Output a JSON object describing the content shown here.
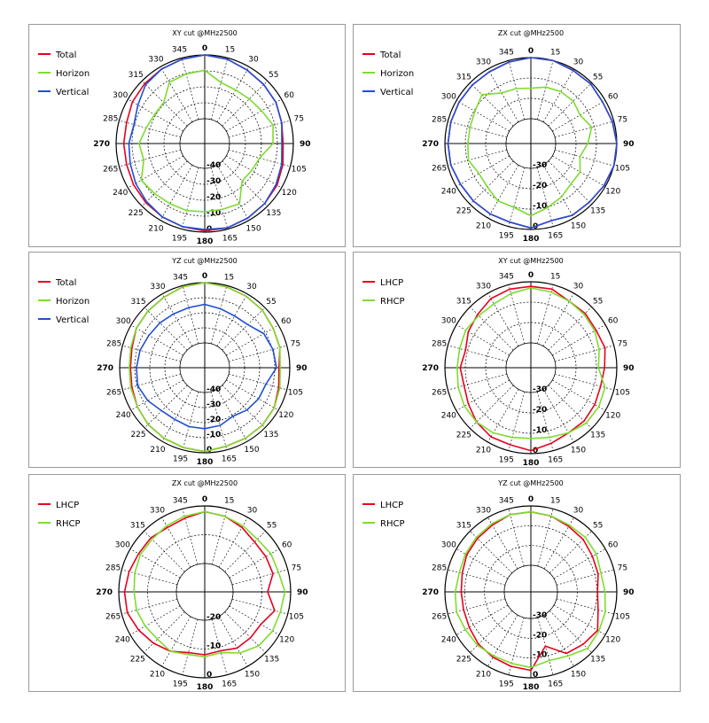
{
  "colors": {
    "red": "#e8001c",
    "green": "#7ddc2f",
    "blue": "#1f4fd6"
  },
  "chart_data": [
    {
      "type": "polar",
      "title": "XY cut @MHz2500",
      "theta_labels": [
        "0",
        "15",
        "30",
        "55",
        "60",
        "75",
        "90",
        "105",
        "120",
        "135",
        "150",
        "165",
        "180",
        "195",
        "210",
        "225",
        "240",
        "265",
        "270",
        "285",
        "300",
        "315",
        "330",
        "345"
      ],
      "radial_labels": [
        "-40",
        "-30",
        "-20",
        "-10",
        "0"
      ],
      "rlim": [
        -50,
        0
      ],
      "legend_position": "top-left",
      "series": [
        {
          "name": "Total",
          "color": "red",
          "values": [
            0,
            -1,
            -3,
            -4,
            -5,
            -7,
            -8,
            -6,
            -4,
            -3,
            -2,
            -1,
            -1,
            -2,
            -3,
            -4,
            -5,
            -6,
            -6,
            -6,
            -4,
            -3,
            -2,
            -1
          ]
        },
        {
          "name": "Horizon",
          "color": "green",
          "values": [
            -12,
            -20,
            -21,
            -20,
            -18,
            -14,
            -16,
            -25,
            -27,
            -28,
            -15,
            -16,
            -16,
            -15,
            -15,
            -14,
            -12,
            -20,
            -18,
            -22,
            -24,
            -24,
            -14,
            -13
          ]
        },
        {
          "name": "Vertical",
          "color": "blue",
          "values": [
            0,
            -1,
            -3,
            -4,
            -5,
            -7,
            -9,
            -7,
            -5,
            -3,
            -2,
            -1,
            -2,
            -2,
            -3,
            -5,
            -7,
            -9,
            -10,
            -12,
            -9,
            -4,
            -2,
            -1
          ]
        }
      ]
    },
    {
      "type": "polar",
      "title": "ZX cut @MHz2500",
      "theta_labels": [
        "0",
        "15",
        "30",
        "55",
        "60",
        "75",
        "90",
        "105",
        "120",
        "135",
        "150",
        "165",
        "180",
        "195",
        "210",
        "225",
        "240",
        "265",
        "270",
        "285",
        "300",
        "315",
        "330",
        "345"
      ],
      "radial_labels": [
        "-30",
        "-20",
        "-10",
        "0"
      ],
      "rlim": [
        -40,
        0
      ],
      "legend_position": "top-left",
      "series": [
        {
          "name": "Total",
          "color": "red",
          "values": [
            0,
            0,
            -1,
            -1,
            -2,
            -1,
            0,
            0,
            -1,
            -2,
            -2,
            -4,
            -1,
            -3,
            -3,
            -3,
            -3,
            -2,
            -2,
            -2,
            -2,
            -2,
            -2,
            -1
          ]
        },
        {
          "name": "Horizon",
          "color": "green",
          "values": [
            -20,
            -18,
            -17,
            -17,
            -19,
            -15,
            -19,
            -23,
            -19,
            -19,
            -16,
            -13,
            -9,
            -13,
            -13,
            -16,
            -17,
            -14,
            -15,
            -15,
            -14,
            -11,
            -18,
            -19
          ]
        },
        {
          "name": "Vertical",
          "color": "blue",
          "values": [
            0,
            0,
            -1,
            -1,
            -2,
            -1,
            0,
            0,
            -1,
            -2,
            -2,
            -4,
            -1,
            -3,
            -3,
            -3,
            -3,
            -2,
            -2,
            -2,
            -2,
            -2,
            -2,
            -1
          ]
        }
      ]
    },
    {
      "type": "polar",
      "title": "YZ cut @MHz2500",
      "theta_labels": [
        "0",
        "15",
        "30",
        "55",
        "60",
        "75",
        "90",
        "105",
        "120",
        "135",
        "150",
        "165",
        "180",
        "195",
        "210",
        "225",
        "240",
        "265",
        "270",
        "285",
        "300",
        "315",
        "330",
        "345"
      ],
      "radial_labels": [
        "-40",
        "-30",
        "-20",
        "-10",
        "0"
      ],
      "rlim": [
        -50,
        0
      ],
      "legend_position": "top-left",
      "series": [
        {
          "name": "Total",
          "color": "red",
          "values": [
            0,
            -1,
            -2,
            -3,
            -5,
            -6,
            -9,
            -7,
            -4,
            -3,
            -3,
            -3,
            -1,
            -2,
            -3,
            -4,
            -6,
            -8,
            -9,
            -8,
            -5,
            -4,
            -3,
            -1
          ]
        },
        {
          "name": "Horizon",
          "color": "green",
          "values": [
            0,
            -1,
            -2,
            -3,
            -5,
            -6,
            -8,
            -6,
            -4,
            -3,
            -3,
            -3,
            -1,
            -2,
            -3,
            -4,
            -6,
            -7,
            -8,
            -7,
            -5,
            -4,
            -3,
            -1
          ]
        },
        {
          "name": "Vertical",
          "color": "blue",
          "values": [
            -18,
            -20,
            -21,
            -20,
            -14,
            -12,
            -11,
            -18,
            -19,
            -21,
            -24,
            -21,
            -20,
            -20,
            -21,
            -20,
            -16,
            -13,
            -14,
            -15,
            -17,
            -18,
            -19,
            -19
          ]
        }
      ]
    },
    {
      "type": "polar",
      "title": "XY cut @MHz2500",
      "theta_labels": [
        "0",
        "15",
        "30",
        "55",
        "60",
        "75",
        "90",
        "105",
        "120",
        "135",
        "150",
        "165",
        "180",
        "195",
        "210",
        "225",
        "240",
        "265",
        "270",
        "285",
        "300",
        "315",
        "330",
        "345"
      ],
      "radial_labels": [
        "-30",
        "-20",
        "-10",
        "0"
      ],
      "rlim": [
        -40,
        0
      ],
      "legend_position": "top-left",
      "series": [
        {
          "name": "LHCP",
          "color": "red",
          "values": [
            -3,
            -3,
            -6,
            -6,
            -7,
            -6,
            -8,
            -9,
            -8,
            -7,
            -7,
            -5,
            -2,
            -4,
            -4,
            -6,
            -9,
            -11,
            -10,
            -12,
            -9,
            -7,
            -4,
            -3
          ]
        },
        {
          "name": "RHCP",
          "color": "green",
          "values": [
            -4,
            -5,
            -6,
            -7,
            -8,
            -10,
            -12,
            -6,
            -5,
            -5,
            -7,
            -9,
            -10,
            -9,
            -7,
            -6,
            -6,
            -7,
            -8,
            -8,
            -7,
            -8,
            -8,
            -6
          ]
        }
      ]
    },
    {
      "type": "polar",
      "title": "ZX cut @MHz2500",
      "theta_labels": [
        "0",
        "15",
        "30",
        "55",
        "60",
        "75",
        "90",
        "105",
        "120",
        "135",
        "150",
        "165",
        "180",
        "195",
        "210",
        "225",
        "240",
        "265",
        "270",
        "285",
        "300",
        "315",
        "330",
        "345"
      ],
      "radial_labels": [
        "-20",
        "-10",
        "0"
      ],
      "rlim": [
        -30,
        0
      ],
      "legend_position": "top-left",
      "series": [
        {
          "name": "LHCP",
          "color": "red",
          "values": [
            -3,
            -4,
            -6,
            -8,
            -8,
            -8,
            -12,
            -7,
            -11,
            -11,
            -11,
            -13,
            -12,
            -12,
            -9,
            -7,
            -5,
            -3,
            -3,
            -4,
            -5,
            -5,
            -6,
            -5
          ]
        },
        {
          "name": "RHCP",
          "color": "green",
          "values": [
            -3,
            -4,
            -5,
            -6,
            -5,
            -5,
            -3,
            -4,
            -4,
            -5,
            -8,
            -12,
            -11,
            -11,
            -9,
            -10,
            -9,
            -8,
            -8,
            -7,
            -6,
            -6,
            -5,
            -4
          ]
        }
      ]
    },
    {
      "type": "polar",
      "title": "YZ cut @MHz2500",
      "theta_labels": [
        "0",
        "15",
        "30",
        "55",
        "60",
        "75",
        "90",
        "105",
        "120",
        "135",
        "150",
        "165",
        "180",
        "195",
        "210",
        "225",
        "240",
        "265",
        "270",
        "285",
        "300",
        "315",
        "330",
        "345"
      ],
      "radial_labels": [
        "-30",
        "-20",
        "-10",
        "0"
      ],
      "rlim": [
        -40,
        0
      ],
      "legend_position": "top-left",
      "series": [
        {
          "name": "LHCP",
          "color": "red",
          "values": [
            -4,
            -5,
            -7,
            -8,
            -10,
            -11,
            -13,
            -11,
            -6,
            -8,
            -10,
            -20,
            -5,
            -6,
            -7,
            -8,
            -10,
            -11,
            -11,
            -10,
            -8,
            -7,
            -6,
            -4
          ]
        },
        {
          "name": "RHCP",
          "color": "green",
          "values": [
            -4,
            -5,
            -6,
            -6,
            -7,
            -9,
            -8,
            -6,
            -5,
            -4,
            -8,
            -10,
            -7,
            -8,
            -8,
            -7,
            -7,
            -6,
            -7,
            -8,
            -7,
            -6,
            -5,
            -4
          ]
        }
      ]
    }
  ]
}
